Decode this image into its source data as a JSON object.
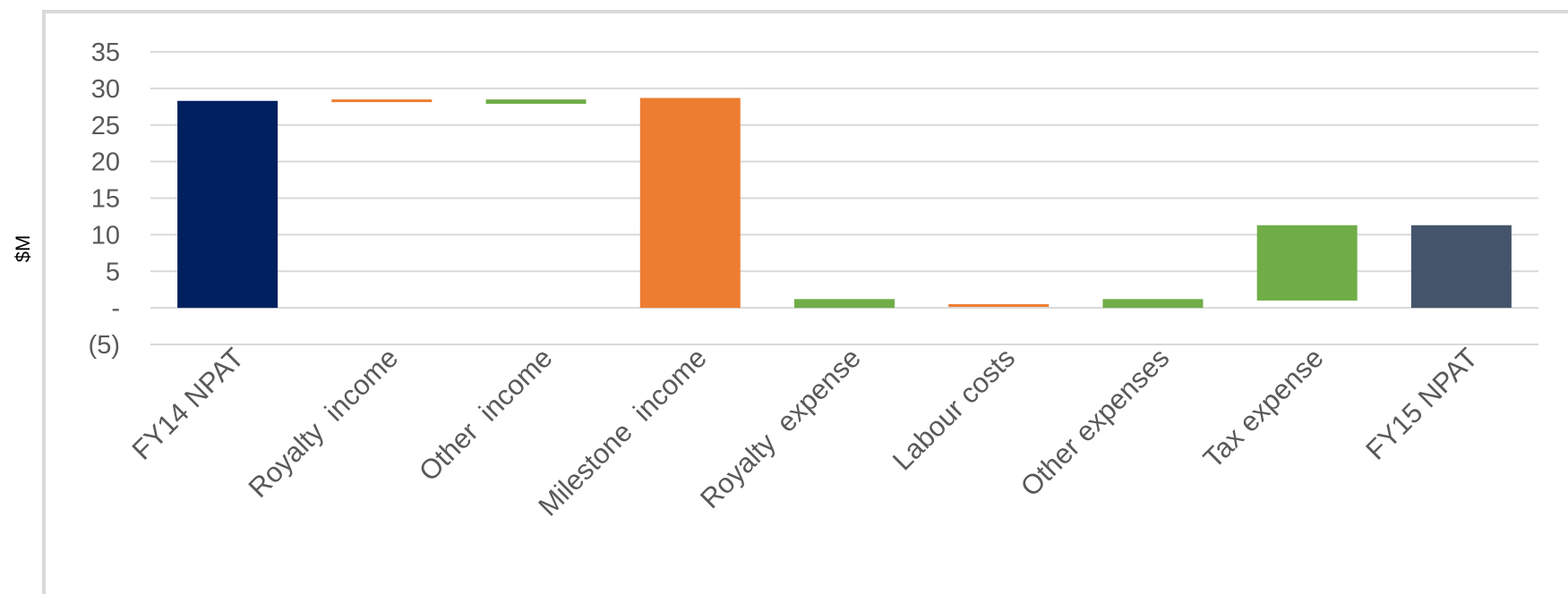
{
  "colors": {
    "grid": "#d9d9d9",
    "tick_text": "#595959",
    "start_total": "#002060",
    "end_total": "#44546a",
    "increase": "#ed7d31",
    "decrease": "#70ad47"
  },
  "chart_data": {
    "type": "bar",
    "subtype": "waterfall",
    "ylabel": "$M",
    "ylim": [
      -5,
      35
    ],
    "yticks": [
      35,
      30,
      25,
      20,
      15,
      10,
      5,
      0,
      -5
    ],
    "ytick_labels": [
      "35",
      "30",
      "25",
      "20",
      "15",
      "10",
      "5",
      "-",
      "(5)"
    ],
    "grid": true,
    "legend": "none",
    "categories": [
      "FY14 NPAT",
      "Royalty  income",
      "Other  income",
      "Milestone  income",
      "Royalty  expense",
      "Labour costs",
      "Other expenses",
      "Tax expense",
      "FY15 NPAT"
    ],
    "bars": [
      {
        "label": "FY14 NPAT",
        "kind": "total",
        "bottom": 0,
        "top": 28.3
      },
      {
        "label": "Royalty  income",
        "kind": "increase",
        "bottom": 28.3,
        "top": 28.5
      },
      {
        "label": "Other  income",
        "kind": "decrease",
        "bottom": 27.9,
        "top": 28.5
      },
      {
        "label": "Milestone  income",
        "kind": "increase",
        "bottom": 0,
        "top": 28.7
      },
      {
        "label": "Royalty  expense",
        "kind": "decrease",
        "bottom": 0,
        "top": 1.2
      },
      {
        "label": "Labour costs",
        "kind": "increase",
        "bottom": 0.2,
        "top": 0.5
      },
      {
        "label": "Other expenses",
        "kind": "decrease",
        "bottom": 0,
        "top": 1.2
      },
      {
        "label": "Tax expense",
        "kind": "decrease",
        "bottom": 1.0,
        "top": 11.3
      },
      {
        "label": "FY15 NPAT",
        "kind": "end-total",
        "bottom": 0,
        "top": 11.3
      }
    ]
  }
}
